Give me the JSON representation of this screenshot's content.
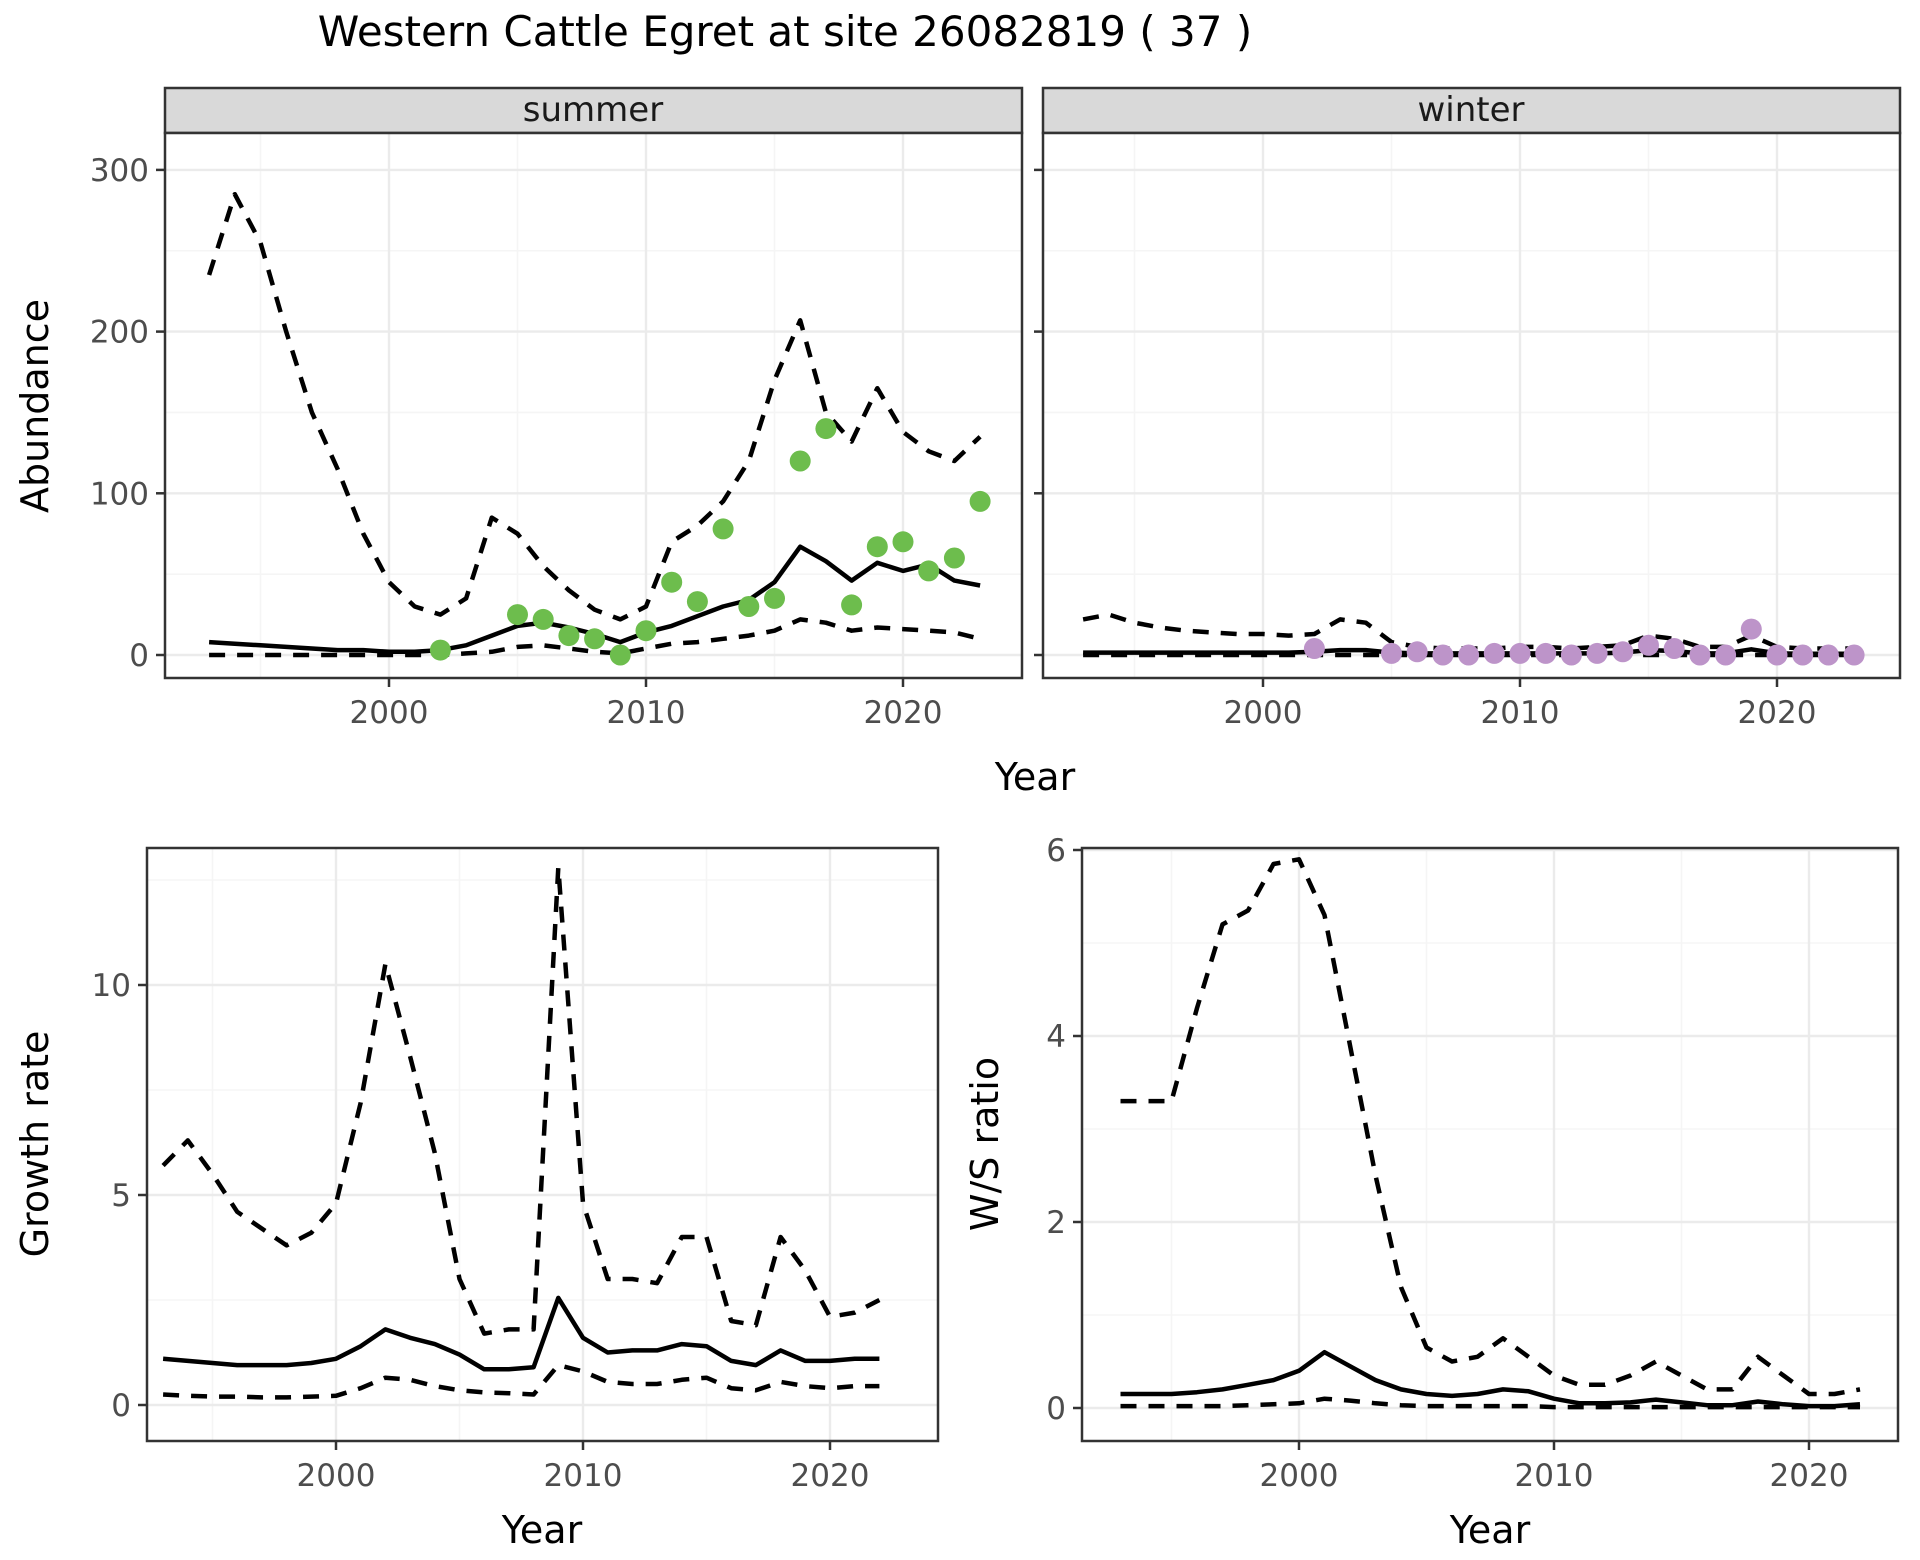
{
  "title": "Western Cattle Egret at site 26082819 ( 37 )",
  "axis_labels": {
    "x": "Year",
    "abundance": "Abundance",
    "growth_rate": "Growth rate",
    "ws_ratio": "W/S ratio"
  },
  "facets": {
    "summer": "summer",
    "winter": "winter"
  },
  "colors": {
    "observation_summer": "#6DBD4D",
    "observation_winter": "#BD94C9",
    "line": "#000000",
    "grid_major": "#EBEBEB",
    "grid_minor": "#F5F5F5",
    "strip_bg": "#D9D9D9",
    "panel_border": "#333333",
    "tick_label": "#4D4D4D"
  },
  "chart_data": [
    {
      "id": "abundance-summer",
      "type": "line",
      "facet_label": "summer",
      "xlabel": "Year",
      "ylabel": "Abundance",
      "xlim": [
        1991.3,
        2024.6
      ],
      "ylim": [
        -14,
        322
      ],
      "xticks": [
        2000,
        2010,
        2020
      ],
      "xticks_minor": [
        1995,
        2005,
        2015
      ],
      "yticks": [
        0,
        100,
        200,
        300
      ],
      "yticks_minor": [
        50,
        150,
        250
      ],
      "x_years": [
        1993,
        1994,
        1995,
        1996,
        1997,
        1998,
        1999,
        2000,
        2001,
        2002,
        2003,
        2004,
        2005,
        2006,
        2007,
        2008,
        2009,
        2010,
        2011,
        2012,
        2013,
        2014,
        2015,
        2016,
        2017,
        2018,
        2019,
        2020,
        2021,
        2022,
        2023
      ],
      "series": [
        {
          "name": "upper_ci",
          "style": "dashed",
          "values": [
            235,
            285,
            255,
            200,
            150,
            115,
            75,
            45,
            30,
            25,
            35,
            85,
            75,
            55,
            40,
            28,
            22,
            30,
            70,
            80,
            95,
            120,
            170,
            207,
            150,
            132,
            165,
            138,
            126,
            120,
            135
          ]
        },
        {
          "name": "median",
          "style": "solid",
          "values": [
            8,
            7,
            6,
            5,
            4,
            3,
            3,
            2,
            2,
            3,
            6,
            12,
            18,
            20,
            17,
            13,
            8,
            14,
            18,
            24,
            30,
            34,
            45,
            67,
            58,
            46,
            57,
            52,
            56,
            46,
            43
          ]
        },
        {
          "name": "lower_ci",
          "style": "dashed",
          "values": [
            0,
            0,
            0,
            0,
            0,
            0,
            0,
            0,
            0,
            0,
            1,
            2,
            5,
            6,
            4,
            2,
            1,
            4,
            7,
            8,
            10,
            12,
            15,
            22,
            20,
            15,
            17,
            16,
            15,
            14,
            10
          ]
        }
      ],
      "points": {
        "name": "observed_counts",
        "color": "#6DBD4D",
        "x": [
          2002,
          2005,
          2006,
          2007,
          2008,
          2009,
          2010,
          2011,
          2012,
          2013,
          2014,
          2015,
          2016,
          2017,
          2018,
          2019,
          2020,
          2021,
          2022,
          2023
        ],
        "y": [
          3,
          25,
          22,
          12,
          10,
          0,
          15,
          45,
          33,
          78,
          30,
          35,
          120,
          140,
          31,
          67,
          70,
          52,
          60,
          95
        ]
      }
    },
    {
      "id": "abundance-winter",
      "type": "line",
      "facet_label": "winter",
      "xlabel": "Year",
      "ylabel": "Abundance",
      "xlim": [
        1991.4,
        2025.0
      ],
      "ylim": [
        -14,
        322
      ],
      "xticks": [
        2000,
        2010,
        2020
      ],
      "xticks_minor": [
        1995,
        2005,
        2015
      ],
      "yticks": [
        0,
        100,
        200,
        300
      ],
      "yticks_minor": [
        50,
        150,
        250
      ],
      "x_years": [
        1993,
        1994,
        1995,
        1996,
        1997,
        1998,
        1999,
        2000,
        2001,
        2002,
        2003,
        2004,
        2005,
        2006,
        2007,
        2008,
        2009,
        2010,
        2011,
        2012,
        2013,
        2014,
        2015,
        2016,
        2017,
        2018,
        2019,
        2020,
        2021,
        2022,
        2023
      ],
      "series": [
        {
          "name": "upper_ci",
          "style": "dashed",
          "values": [
            22,
            25,
            20,
            17,
            15,
            14,
            13,
            13,
            12,
            13,
            22,
            20,
            8,
            5,
            4,
            4,
            4,
            5,
            5,
            4,
            5,
            6,
            12,
            10,
            5,
            5,
            12,
            5,
            4,
            4,
            4
          ]
        },
        {
          "name": "median",
          "style": "solid",
          "values": [
            1.5,
            1.5,
            1.5,
            1.5,
            1.5,
            1.5,
            1.5,
            1.5,
            1.5,
            2,
            3,
            3,
            1.5,
            1,
            1,
            1,
            1,
            1,
            1,
            1,
            1,
            1.5,
            3,
            2.5,
            1,
            1,
            3.5,
            1,
            0.8,
            0.8,
            0.8
          ]
        },
        {
          "name": "lower_ci",
          "style": "dashed",
          "values": [
            0,
            0,
            0,
            0,
            0,
            0,
            0,
            0,
            0,
            0,
            0,
            0,
            0,
            0,
            0,
            0,
            0,
            0,
            0,
            0,
            0,
            0,
            0,
            0,
            0,
            0,
            0,
            0,
            0,
            0,
            0
          ]
        }
      ],
      "points": {
        "name": "observed_counts",
        "color": "#BD94C9",
        "x": [
          2002,
          2005,
          2006,
          2007,
          2008,
          2009,
          2010,
          2011,
          2012,
          2013,
          2014,
          2015,
          2016,
          2017,
          2018,
          2019,
          2020,
          2021,
          2022,
          2023
        ],
        "y": [
          4,
          1,
          2,
          0,
          0,
          1,
          1,
          1,
          0,
          1,
          2,
          6,
          4,
          0,
          0,
          16,
          0,
          0,
          0,
          0
        ]
      }
    },
    {
      "id": "growth-rate",
      "type": "line",
      "facet_label": "",
      "xlabel": "Year",
      "ylabel": "Growth rate",
      "xlim": [
        1991.5,
        2023.5
      ],
      "ylim": [
        -0.86,
        13.26
      ],
      "xticks": [
        2000,
        2010,
        2020
      ],
      "xticks_minor": [
        1995,
        2005,
        2015
      ],
      "yticks": [
        0,
        5,
        10
      ],
      "yticks_minor": [
        2.5,
        7.5,
        12.5
      ],
      "x_years": [
        1993,
        1994,
        1995,
        1996,
        1997,
        1998,
        1999,
        2000,
        2001,
        2002,
        2003,
        2004,
        2005,
        2006,
        2007,
        2008,
        2009,
        2010,
        2011,
        2012,
        2013,
        2014,
        2015,
        2016,
        2017,
        2018,
        2019,
        2020,
        2021,
        2022
      ],
      "series": [
        {
          "name": "upper_ci",
          "style": "dashed",
          "values": [
            5.7,
            6.3,
            5.5,
            4.6,
            4.2,
            3.8,
            4.1,
            4.8,
            7.2,
            10.5,
            8.3,
            6.0,
            3.0,
            1.7,
            1.8,
            1.8,
            12.8,
            4.8,
            3.0,
            3.0,
            2.9,
            4.0,
            4.0,
            2.0,
            1.9,
            4.0,
            3.2,
            2.1,
            2.2,
            2.5
          ]
        },
        {
          "name": "median",
          "style": "solid",
          "values": [
            1.1,
            1.05,
            1.0,
            0.95,
            0.95,
            0.95,
            1.0,
            1.1,
            1.4,
            1.8,
            1.6,
            1.45,
            1.2,
            0.85,
            0.85,
            0.9,
            2.55,
            1.6,
            1.25,
            1.3,
            1.3,
            1.45,
            1.4,
            1.05,
            0.95,
            1.3,
            1.05,
            1.05,
            1.1,
            1.1
          ]
        },
        {
          "name": "lower_ci",
          "style": "dashed",
          "values": [
            0.25,
            0.22,
            0.2,
            0.2,
            0.18,
            0.18,
            0.2,
            0.22,
            0.4,
            0.65,
            0.6,
            0.45,
            0.35,
            0.3,
            0.28,
            0.25,
            0.95,
            0.8,
            0.55,
            0.5,
            0.5,
            0.6,
            0.65,
            0.4,
            0.35,
            0.55,
            0.45,
            0.4,
            0.45,
            0.45
          ]
        }
      ],
      "points": null
    },
    {
      "id": "ws-ratio",
      "type": "line",
      "facet_label": "",
      "xlabel": "Year",
      "ylabel": "W/S ratio",
      "xlim": [
        1991.5,
        2023.5
      ],
      "ylim": [
        -0.35,
        6.02
      ],
      "xticks": [
        2000,
        2010,
        2020
      ],
      "xticks_minor": [
        1995,
        2005,
        2015
      ],
      "yticks": [
        0,
        2,
        4,
        6
      ],
      "yticks_minor": [
        1,
        3,
        5
      ],
      "x_years": [
        1993,
        1994,
        1995,
        1996,
        1997,
        1998,
        1999,
        2000,
        2001,
        2002,
        2003,
        2004,
        2005,
        2006,
        2007,
        2008,
        2009,
        2010,
        2011,
        2012,
        2013,
        2014,
        2015,
        2016,
        2017,
        2018,
        2019,
        2020,
        2021,
        2022
      ],
      "series": [
        {
          "name": "upper_ci",
          "style": "dashed",
          "values": [
            3.3,
            3.3,
            3.3,
            4.3,
            5.2,
            5.35,
            5.85,
            5.9,
            5.3,
            3.9,
            2.5,
            1.3,
            0.65,
            0.5,
            0.55,
            0.75,
            0.55,
            0.35,
            0.25,
            0.25,
            0.35,
            0.5,
            0.35,
            0.2,
            0.2,
            0.55,
            0.35,
            0.15,
            0.15,
            0.2
          ]
        },
        {
          "name": "median",
          "style": "solid",
          "values": [
            0.15,
            0.15,
            0.15,
            0.17,
            0.2,
            0.25,
            0.3,
            0.4,
            0.6,
            0.45,
            0.3,
            0.2,
            0.15,
            0.13,
            0.15,
            0.2,
            0.18,
            0.1,
            0.05,
            0.05,
            0.06,
            0.09,
            0.06,
            0.03,
            0.03,
            0.07,
            0.04,
            0.02,
            0.02,
            0.04
          ]
        },
        {
          "name": "lower_ci",
          "style": "dashed",
          "values": [
            0.02,
            0.02,
            0.02,
            0.02,
            0.02,
            0.03,
            0.04,
            0.05,
            0.1,
            0.08,
            0.05,
            0.03,
            0.02,
            0.02,
            0.02,
            0.02,
            0.02,
            0.01,
            0.01,
            0.01,
            0.01,
            0.01,
            0.01,
            0.01,
            0.01,
            0.01,
            0.01,
            0.01,
            0.01,
            0.01
          ]
        }
      ],
      "points": null
    }
  ]
}
